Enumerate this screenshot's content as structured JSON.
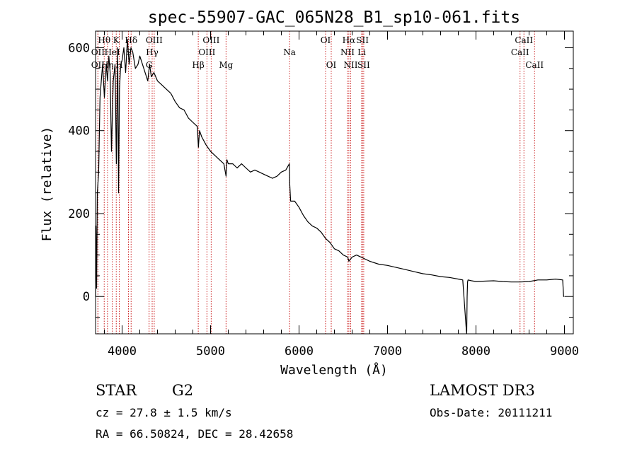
{
  "chart_data": {
    "type": "line",
    "title": "spec-55907-GAC_065N28_B1_sp10-061.fits",
    "xlabel": "Wavelength (Å)",
    "ylabel": "Flux (relative)",
    "xlim": [
      3700,
      9100
    ],
    "ylim": [
      -90,
      640
    ],
    "xticks": [
      4000,
      5000,
      6000,
      7000,
      8000,
      9000
    ],
    "yticks": [
      0,
      200,
      400,
      600
    ],
    "series": [
      {
        "name": "spectrum",
        "x": [
          3700,
          3705,
          3712,
          3720,
          3735,
          3750,
          3765,
          3780,
          3800,
          3820,
          3835,
          3850,
          3865,
          3880,
          3900,
          3920,
          3935,
          3950,
          3960,
          3970,
          3985,
          4000,
          4020,
          4040,
          4060,
          4080,
          4100,
          4120,
          4150,
          4180,
          4200,
          4230,
          4260,
          4290,
          4310,
          4330,
          4360,
          4400,
          4450,
          4500,
          4550,
          4600,
          4650,
          4700,
          4750,
          4800,
          4850,
          4862,
          4875,
          4900,
          4950,
          5000,
          5050,
          5100,
          5150,
          5175,
          5185,
          5200,
          5250,
          5300,
          5350,
          5400,
          5450,
          5500,
          5550,
          5600,
          5650,
          5700,
          5750,
          5800,
          5850,
          5890,
          5895,
          5905,
          5950,
          6000,
          6050,
          6100,
          6150,
          6200,
          6250,
          6300,
          6350,
          6400,
          6450,
          6500,
          6550,
          6563,
          6600,
          6650,
          6700,
          6750,
          6800,
          6900,
          7000,
          7100,
          7200,
          7300,
          7400,
          7500,
          7600,
          7700,
          7800,
          7850,
          7890,
          7895,
          7900,
          7905,
          7910,
          7950,
          8000,
          8100,
          8200,
          8300,
          8400,
          8500,
          8600,
          8700,
          8800,
          8900,
          8980,
          8990,
          9000
        ],
        "values": [
          0,
          170,
          20,
          250,
          300,
          480,
          520,
          560,
          480,
          560,
          520,
          580,
          540,
          350,
          520,
          560,
          320,
          600,
          250,
          500,
          560,
          570,
          600,
          540,
          620,
          560,
          600,
          590,
          550,
          560,
          580,
          560,
          540,
          520,
          560,
          530,
          540,
          520,
          510,
          500,
          490,
          470,
          455,
          450,
          430,
          420,
          410,
          360,
          400,
          385,
          365,
          350,
          340,
          330,
          320,
          290,
          330,
          320,
          320,
          310,
          320,
          310,
          300,
          305,
          300,
          295,
          290,
          285,
          290,
          300,
          305,
          320,
          270,
          230,
          230,
          215,
          195,
          180,
          170,
          165,
          155,
          140,
          130,
          115,
          110,
          100,
          95,
          85,
          95,
          100,
          95,
          90,
          85,
          78,
          75,
          70,
          65,
          60,
          55,
          52,
          48,
          46,
          42,
          40,
          -80,
          -90,
          0,
          35,
          40,
          38,
          36,
          37,
          38,
          36,
          35,
          35,
          36,
          40,
          40,
          42,
          40,
          0,
          0
        ]
      }
    ],
    "lines": [
      {
        "name": "Hθ",
        "wavelength": 3798,
        "row": 1
      },
      {
        "name": "OII",
        "wavelength": 3727,
        "row": 2
      },
      {
        "name": "OII",
        "wavelength": 3727,
        "row": 3
      },
      {
        "name": "Hη",
        "wavelength": 3835,
        "row": 3
      },
      {
        "name": "K",
        "wavelength": 3934,
        "row": 1
      },
      {
        "name": "HeI",
        "wavelength": 3889,
        "row": 2
      },
      {
        "name": "S",
        "wavelength": 4072,
        "row": 2
      },
      {
        "name": "H",
        "wavelength": 3968,
        "row": 3
      },
      {
        "name": "Hδ",
        "wavelength": 4102,
        "row": 1
      },
      {
        "name": "OIII",
        "wavelength": 4363,
        "row": 1
      },
      {
        "name": "Hγ",
        "wavelength": 4340,
        "row": 2
      },
      {
        "name": "G",
        "wavelength": 4305,
        "row": 3
      },
      {
        "name": "OIII",
        "wavelength": 5007,
        "row": 1
      },
      {
        "name": "OIII",
        "wavelength": 4959,
        "row": 2
      },
      {
        "name": "Hβ",
        "wavelength": 4861,
        "row": 3
      },
      {
        "name": "Mg",
        "wavelength": 5175,
        "row": 3
      },
      {
        "name": "Na",
        "wavelength": 5893,
        "row": 2
      },
      {
        "name": "OI",
        "wavelength": 6300,
        "row": 1
      },
      {
        "name": "OI",
        "wavelength": 6364,
        "row": 3
      },
      {
        "name": "Hα",
        "wavelength": 6563,
        "row": 1
      },
      {
        "name": "NII",
        "wavelength": 6548,
        "row": 2
      },
      {
        "name": "NII",
        "wavelength": 6584,
        "row": 3
      },
      {
        "name": "SII",
        "wavelength": 6717,
        "row": 1
      },
      {
        "name": "Li",
        "wavelength": 6708,
        "row": 2
      },
      {
        "name": "SII",
        "wavelength": 6731,
        "row": 3
      },
      {
        "name": "CaII",
        "wavelength": 8542,
        "row": 1
      },
      {
        "name": "CaII",
        "wavelength": 8498,
        "row": 2
      },
      {
        "name": "CaII",
        "wavelength": 8662,
        "row": 3
      }
    ],
    "line_color": "#cc2222"
  },
  "info": {
    "object_class": "STAR",
    "subclass": "G2",
    "survey": "LAMOST DR3",
    "redshift": "cz = 27.8 ± 1.5 km/s",
    "obs_date": "Obs-Date: 20111211",
    "coords": "RA =  66.50824, DEC =  28.42658"
  }
}
